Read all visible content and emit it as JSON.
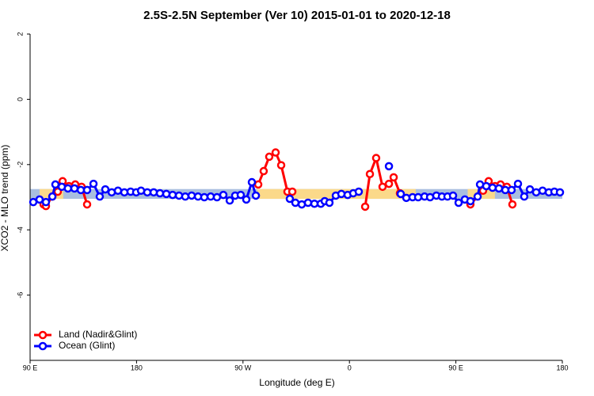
{
  "chart_data": {
    "type": "line",
    "title": "2.5S-2.5N September (Ver 10)   2015-01-01 to 2020-12-18",
    "xlabel": "Longitude (deg E)",
    "ylabel": "XCO2 - MLO trend (ppm)",
    "xlim": [
      90,
      540
    ],
    "ylim": [
      -8,
      2
    ],
    "xticks": [
      {
        "value": 90,
        "label": "90 E"
      },
      180,
      {
        "value": 270,
        "label": "90 W"
      },
      {
        "value": 360,
        "label": "0"
      },
      {
        "value": 450,
        "label": "90 E"
      },
      180
    ],
    "yticks": [
      -6,
      -4,
      -2,
      0,
      2
    ],
    "legend": "bottom-left",
    "bands": [
      {
        "color": "#a9bedf",
        "x": [
          90,
          540
        ],
        "y": [
          -3.05,
          -2.75
        ]
      },
      {
        "color": "#fbd98a",
        "x": [
          98,
          118
        ],
        "y": [
          -3.05,
          -2.75
        ]
      },
      {
        "color": "#fbd98a",
        "x": [
          282,
          416
        ],
        "y": [
          -3.05,
          -2.75
        ]
      },
      {
        "color": "#fbd98a",
        "x": [
          460,
          483
        ],
        "y": [
          -3.05,
          -2.75
        ]
      }
    ],
    "series": [
      {
        "name": "Land (Nadir&Glint)",
        "color": "#ff0000",
        "x": [
          101.4,
          103.4,
          108.8,
          113.4,
          117.5,
          122.8,
          128.2,
          133.5,
          138.2,
          200,
          282.9,
          287.5,
          292.2,
          297.6,
          302.3,
          307.6,
          311.7,
          340,
          373.3,
          377.3,
          382.6,
          388,
          393.4,
          397.4,
          402.7,
          430,
          462.3,
          473,
          477.7,
          483.1,
          487.8,
          493.1,
          497.8
        ],
        "values": [
          -3.22,
          -3.27,
          -2.98,
          -2.83,
          -2.51,
          -2.66,
          -2.61,
          -2.68,
          -3.22,
          null,
          -2.61,
          -2.2,
          -1.76,
          -1.63,
          -2.02,
          -2.83,
          -2.83,
          null,
          -3.29,
          -2.29,
          -1.8,
          -2.68,
          -2.59,
          -2.39,
          -2.88,
          null,
          -3.22,
          -2.8,
          -2.51,
          -2.66,
          -2.61,
          -2.68,
          -3.22
        ]
      },
      {
        "name": "Ocean (Glint)",
        "color": "#0000ff",
        "x": [
          92.7,
          98,
          103.4,
          108.8,
          111.4,
          116.8,
          122,
          127.5,
          132.9,
          138.2,
          143.6,
          148.9,
          153.6,
          159,
          164.3,
          169.7,
          175,
          179.7,
          183.8,
          189.1,
          194.5,
          199.8,
          205.2,
          210.5,
          215.9,
          221.2,
          226.6,
          232,
          237.3,
          242.7,
          248,
          253.4,
          258.8,
          263.4,
          268.1,
          272.8,
          277.5,
          280.9,
          300,
          309.6,
          314.3,
          319.7,
          325,
          330.4,
          335.8,
          339.1,
          343.1,
          348.5,
          353.2,
          358.5,
          363.2,
          367.9,
          380,
          393.4,
          400,
          403.4,
          408.1,
          413.4,
          418.1,
          423.5,
          428.2,
          433.5,
          438.2,
          442.9,
          447.6,
          452.3,
          457.6,
          462.3,
          468.4,
          470.4,
          475.7,
          481,
          486.4,
          491.8,
          497.1,
          502.5,
          507.8,
          512.6,
          517.9,
          523.3,
          528.6,
          533.3,
          538
        ],
        "values": [
          -3.15,
          -3.07,
          -3.15,
          -2.98,
          -2.61,
          -2.68,
          -2.73,
          -2.73,
          -2.78,
          -2.78,
          -2.59,
          -2.98,
          -2.76,
          -2.85,
          -2.8,
          -2.85,
          -2.83,
          -2.85,
          -2.8,
          -2.85,
          -2.85,
          -2.88,
          -2.9,
          -2.93,
          -2.95,
          -2.98,
          -2.95,
          -2.98,
          -3.0,
          -2.98,
          -3.0,
          -2.93,
          -3.1,
          -2.95,
          -2.93,
          -3.07,
          -2.54,
          -2.95,
          null,
          -3.05,
          -3.17,
          -3.22,
          -3.17,
          -3.2,
          -3.2,
          -3.12,
          -3.17,
          -2.95,
          -2.9,
          -2.93,
          -2.88,
          -2.83,
          null,
          -2.05,
          null,
          -2.9,
          -3.02,
          -3.0,
          -3.0,
          -2.98,
          -3.0,
          -2.95,
          -2.98,
          -2.98,
          -2.95,
          -3.17,
          -3.07,
          -3.12,
          -2.98,
          -2.61,
          -2.66,
          -2.71,
          -2.73,
          -2.78,
          -2.78,
          -2.59,
          -2.98,
          -2.76,
          -2.85,
          -2.8,
          -2.85,
          -2.83,
          -2.85
        ]
      }
    ]
  }
}
